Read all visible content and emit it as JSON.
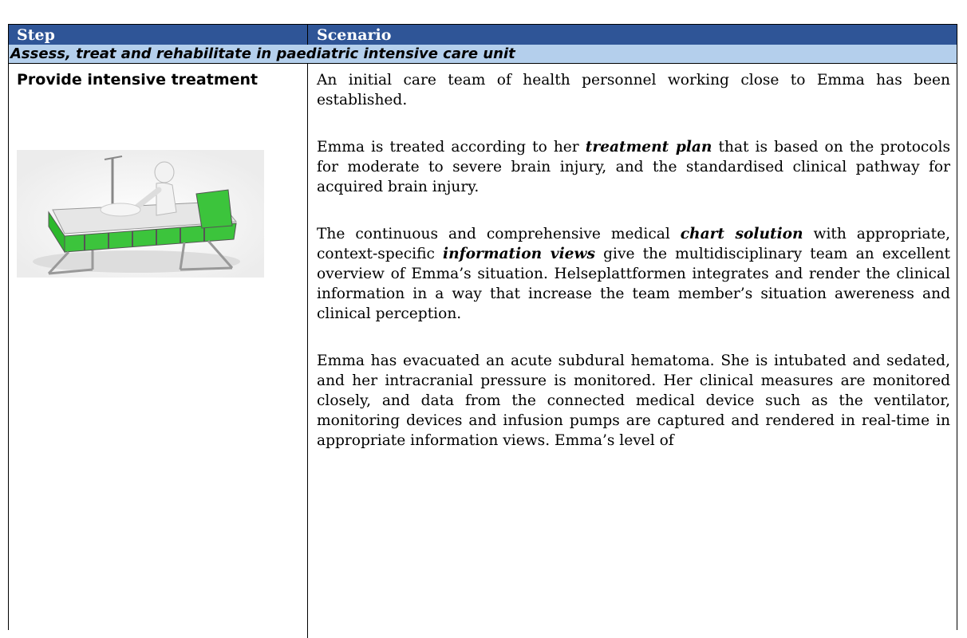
{
  "table": {
    "header": [
      "Step",
      "Scenario"
    ],
    "section": "Assess, treat and rehabilitate in paediatric intensive care unit",
    "rows": [
      {
        "step": "Provide intensive treatment",
        "scenario": [
          [
            "An initial care team of health personnel working close to Emma has been established."
          ],
          [
            "Emma is treated according to her ",
            "treatment plan",
            " that is based on the protocols for moderate to severe brain injury, and the standardised clinical pathway for acquired brain injury."
          ],
          [
            "The continuous and comprehensive medical ",
            "chart solution",
            " with appropriate, context-specific ",
            "information views",
            " give the multidisciplinary team an excellent overview of Emma’s situation. Helseplattformen integrates and render the clinical information in a way that increase the team member’s situation awereness and clinical perception."
          ],
          [
            "Emma has evacuated an acute subdural hematoma. She is intubated and sedated, and her intracranial pressure is monitored. Her clinical measures are monitored closely, and data from the connected medical device such as the ventilator, monitoring devices and infusion pumps are captured and rendered in real-time in appropriate information views. Emma’s level of"
          ]
        ]
      }
    ]
  }
}
